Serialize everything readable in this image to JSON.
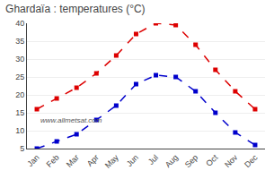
{
  "chart_data": {
    "type": "line",
    "title": "Ghardaïa : temperatures (°C)",
    "categories": [
      "Jan",
      "Feb",
      "Mar",
      "Apr",
      "May",
      "Jun",
      "Jul",
      "Aug",
      "Sep",
      "Oct",
      "Nov",
      "Dec"
    ],
    "series": [
      {
        "color": "#dd0000",
        "marker": "square",
        "line_style": "dashed",
        "values": [
          16,
          19,
          22,
          26,
          31,
          37,
          40,
          39.5,
          34,
          27,
          21,
          16
        ]
      },
      {
        "color": "#0000cc",
        "marker": "square",
        "line_style": "dashed",
        "values": [
          5,
          7,
          9,
          13,
          17,
          23,
          25.5,
          25,
          21,
          15,
          9.5,
          6
        ]
      }
    ],
    "ylim": [
      5,
      40
    ],
    "yticks": [
      5,
      10,
      15,
      20,
      25,
      30,
      35,
      40
    ],
    "grid": true,
    "annotations": [
      "www.allmetsat.com"
    ]
  }
}
